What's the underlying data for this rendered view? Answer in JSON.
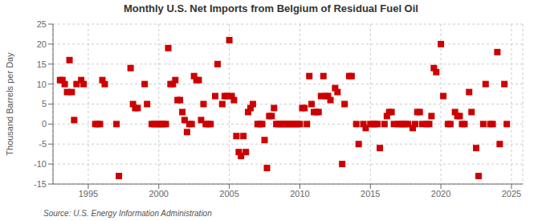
{
  "chart_data": {
    "type": "scatter",
    "title": "Monthly U.S. Net Imports from Belgium of Residual Fuel Oil",
    "ylabel": "Thousand Barrels per Day",
    "annotation": "Source: U.S. Energy Information Administration",
    "color": "#cc0000",
    "marker": "square",
    "grid": true,
    "xlim": [
      1992.5,
      2025.8
    ],
    "xticks": [
      1995,
      2000,
      2005,
      2010,
      2015,
      2020,
      2025
    ],
    "ylim": [
      -15,
      25
    ],
    "yticks": [
      -15,
      -10,
      -5,
      0,
      5,
      10,
      15,
      20,
      25
    ],
    "x": [
      1993.0,
      1993.17,
      1993.33,
      1993.5,
      1993.67,
      1993.83,
      1994.0,
      1994.17,
      1994.5,
      1994.67,
      1995.5,
      1995.67,
      1995.83,
      1996.0,
      1996.17,
      1997.0,
      1997.17,
      1998.0,
      1998.17,
      1998.33,
      1998.5,
      1999.0,
      1999.17,
      1999.5,
      1999.67,
      1999.83,
      2000.0,
      2000.17,
      2000.33,
      2000.5,
      2000.67,
      2000.83,
      2001.0,
      2001.17,
      2001.33,
      2001.5,
      2001.67,
      2001.83,
      2002.0,
      2002.17,
      2002.33,
      2002.5,
      2002.67,
      2002.83,
      2003.0,
      2003.17,
      2003.33,
      2003.5,
      2003.67,
      2004.0,
      2004.17,
      2004.5,
      2004.67,
      2004.83,
      2005.0,
      2005.17,
      2005.33,
      2005.5,
      2005.67,
      2005.83,
      2006.0,
      2006.17,
      2006.33,
      2006.5,
      2006.67,
      2007.0,
      2007.17,
      2007.33,
      2007.5,
      2007.67,
      2007.83,
      2008.0,
      2008.17,
      2008.33,
      2008.5,
      2008.67,
      2008.83,
      2009.0,
      2009.17,
      2009.33,
      2009.5,
      2009.67,
      2009.83,
      2010.0,
      2010.17,
      2010.33,
      2010.5,
      2010.67,
      2010.83,
      2011.0,
      2011.17,
      2011.33,
      2011.5,
      2011.67,
      2011.83,
      2012.0,
      2012.17,
      2012.5,
      2012.67,
      2013.0,
      2013.17,
      2013.5,
      2013.67,
      2014.0,
      2014.17,
      2014.5,
      2014.67,
      2015.0,
      2015.17,
      2015.33,
      2015.5,
      2015.67,
      2016.0,
      2016.17,
      2016.33,
      2016.5,
      2016.67,
      2017.0,
      2017.17,
      2017.33,
      2017.5,
      2017.67,
      2018.0,
      2018.17,
      2018.33,
      2018.5,
      2018.67,
      2019.0,
      2019.17,
      2019.33,
      2019.5,
      2019.67,
      2020.0,
      2020.17,
      2020.5,
      2020.67,
      2021.0,
      2021.17,
      2021.33,
      2021.5,
      2021.67,
      2022.0,
      2022.17,
      2022.5,
      2022.67,
      2023.0,
      2023.17,
      2023.5,
      2023.67,
      2024.0,
      2024.17,
      2024.5,
      2024.67
    ],
    "values": [
      11,
      11,
      10,
      8,
      16,
      8,
      1,
      10,
      11,
      10,
      0,
      0,
      0,
      11,
      10,
      0,
      -13,
      14,
      5,
      4,
      4,
      10,
      5,
      0,
      0,
      0,
      0,
      0,
      0,
      0,
      19,
      10,
      10,
      11,
      6,
      6,
      3,
      1,
      -2,
      0,
      0,
      12,
      11,
      11,
      1,
      5,
      0,
      0,
      0,
      7,
      15,
      5,
      7,
      7,
      21,
      7,
      6,
      -3,
      -7,
      -8,
      -3,
      -7,
      3,
      4,
      5,
      0,
      0,
      0,
      -4,
      -11,
      2,
      2,
      4,
      0,
      0,
      0,
      0,
      0,
      0,
      0,
      0,
      0,
      0,
      0,
      4,
      4,
      0,
      12,
      5,
      3,
      3,
      3,
      7,
      12,
      7,
      7,
      6,
      9,
      8,
      -10,
      5,
      12,
      12,
      0,
      -5,
      0,
      -1,
      0,
      0,
      0,
      0,
      -6,
      0,
      2,
      3,
      3,
      0,
      0,
      0,
      0,
      0,
      0,
      -1,
      0,
      3,
      3,
      0,
      0,
      0,
      2,
      14,
      13,
      20,
      7,
      0,
      0,
      3,
      2,
      2,
      0,
      0,
      8,
      3,
      -6,
      -13,
      0,
      10,
      0,
      0,
      18,
      -5,
      10,
      0
    ]
  }
}
